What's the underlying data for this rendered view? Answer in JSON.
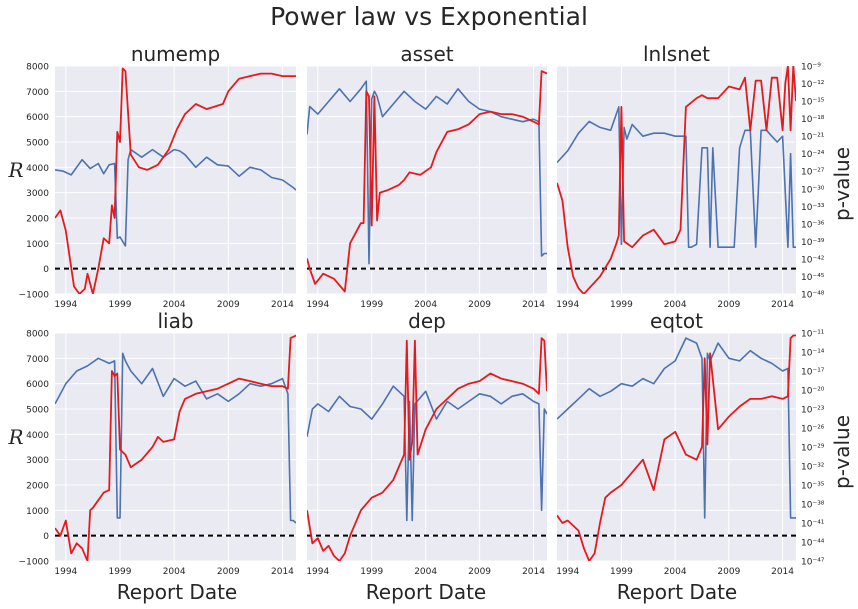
{
  "figure": {
    "title": "Power law vs Exponential",
    "xlabel": "Report Date",
    "ylabel_left": "R",
    "ylabel_right": "p-value"
  },
  "chart_data": [
    {
      "type": "line",
      "title": "numemp",
      "xticks": [
        "1994",
        "1999",
        "2004",
        "2009",
        "2014"
      ],
      "yticks_left": [
        "8000",
        "7000",
        "6000",
        "5000",
        "4000",
        "3000",
        "2000",
        "1000",
        "0",
        "−1000"
      ],
      "ylim_left": [
        -1000,
        8000
      ],
      "yticks_right": [],
      "ylim_right_log10": [
        -48,
        -9
      ],
      "xlim": [
        1993,
        2015.25
      ],
      "series": [
        {
          "axis": "left",
          "color": "#4c72b0",
          "x": [
            1993,
            1993.75,
            1994.5,
            1995.5,
            1996.25,
            1997,
            1997.5,
            1998,
            1998.5,
            1998.75,
            1999,
            1999.5,
            1999.75,
            2000,
            2001,
            2002,
            2003,
            2004,
            2004.5,
            2005,
            2006,
            2007,
            2008,
            2009,
            2010,
            2011,
            2012,
            2013,
            2014,
            2015,
            2015.25
          ],
          "y": [
            3900,
            3850,
            3700,
            4300,
            3950,
            4150,
            3750,
            4100,
            4150,
            1200,
            1250,
            900,
            4300,
            4700,
            4400,
            4700,
            4400,
            4700,
            4650,
            4500,
            4000,
            4400,
            4100,
            4050,
            3650,
            4000,
            3900,
            3600,
            3500,
            3200,
            3100
          ]
        },
        {
          "axis": "left",
          "color": "#e41a1c",
          "x": [
            1993,
            1993.5,
            1994,
            1994.75,
            1995.25,
            1995.75,
            1996,
            1996.5,
            1997,
            1997.5,
            1998,
            1998.25,
            1998.5,
            1998.75,
            1999,
            1999.25,
            1999.5,
            2000,
            2000.75,
            2001.5,
            2002.5,
            2003.5,
            2004.25,
            2005,
            2006,
            2007,
            2008.5,
            2009,
            2010,
            2011,
            2012,
            2013,
            2014,
            2015.25
          ],
          "y": [
            2000,
            2300,
            1500,
            -700,
            -1000,
            -800,
            -200,
            -1000,
            0,
            1200,
            1000,
            2500,
            2000,
            5400,
            5000,
            7900,
            7800,
            4500,
            4000,
            3900,
            4100,
            4700,
            5500,
            6100,
            6500,
            6300,
            6500,
            7000,
            7500,
            7600,
            7700,
            7700,
            7600,
            7600
          ]
        }
      ],
      "zero_line": 0
    },
    {
      "type": "line",
      "title": "asset",
      "xticks": [
        "1994",
        "1999",
        "2004",
        "2009",
        "2014"
      ],
      "yticks_left": [],
      "ylim_left": [
        -1000,
        8000
      ],
      "yticks_right": [],
      "ylim_right_log10": [
        -48,
        -9
      ],
      "xlim": [
        1993,
        2015.25
      ],
      "series": [
        {
          "axis": "left",
          "color": "#4c72b0",
          "x": [
            1993,
            1993.25,
            1994,
            1995,
            1996,
            1997,
            1998,
            1998.5,
            1998.75,
            1999,
            1999.25,
            1999.5,
            2000,
            2001,
            2002,
            2003,
            2004,
            2005,
            2006,
            2007,
            2008,
            2009,
            2010,
            2011,
            2012,
            2013,
            2014,
            2014.5,
            2014.75,
            2015,
            2015.25
          ],
          "y": [
            5300,
            6400,
            6100,
            6600,
            7100,
            6600,
            7100,
            7400,
            200,
            6700,
            7000,
            6800,
            6000,
            6500,
            7000,
            6600,
            6300,
            6800,
            6500,
            7100,
            6600,
            6300,
            6200,
            6000,
            5900,
            5800,
            5900,
            5800,
            500,
            600,
            600
          ]
        },
        {
          "axis": "left",
          "color": "#e41a1c",
          "x": [
            1993,
            1993.25,
            1993.75,
            1994.5,
            1995.5,
            1996.5,
            1997,
            1998,
            1998.25,
            1998.5,
            1998.75,
            1999,
            1999.25,
            1999.5,
            1999.75,
            2000.5,
            2001.5,
            2002,
            2002.5,
            2003.5,
            2004.5,
            2005,
            2006,
            2007,
            2008,
            2009,
            2010,
            2011,
            2012,
            2013,
            2014,
            2014.5,
            2014.75,
            2015.25
          ],
          "y": [
            400,
            0,
            -600,
            -200,
            -400,
            -900,
            1000,
            1800,
            1800,
            7000,
            6800,
            1700,
            6800,
            1900,
            3000,
            3100,
            3300,
            3500,
            3800,
            3700,
            4000,
            4600,
            5400,
            5500,
            5700,
            6100,
            6200,
            6100,
            6100,
            6000,
            5800,
            5700,
            7800,
            7700
          ]
        }
      ],
      "zero_line": 0
    },
    {
      "type": "line",
      "title": "lnlsnet",
      "xticks": [
        "1994",
        "1999",
        "2004",
        "2009",
        "2014"
      ],
      "yticks_left": [],
      "ylim_left": [
        -1000,
        8000
      ],
      "yticks_right": [
        "10⁻⁹",
        "10⁻¹²",
        "10⁻¹⁵",
        "10⁻¹⁸",
        "10⁻²¹",
        "10⁻²⁴",
        "10⁻²⁷",
        "10⁻³⁰",
        "10⁻³³",
        "10⁻³⁶",
        "10⁻³⁹",
        "10⁻⁴²",
        "10⁻⁴⁵",
        "10⁻⁴⁸"
      ],
      "ylim_right_log10": [
        -48,
        -9
      ],
      "xlim": [
        1993,
        2015.25
      ],
      "series": [
        {
          "axis": "right",
          "color": "#4c72b0",
          "x": [
            1993,
            1994,
            1995,
            1996,
            1997,
            1998,
            1998.75,
            1999,
            1999.25,
            1999.5,
            2000,
            2001,
            2002,
            2003,
            2004,
            2005,
            2005.25,
            2005.5,
            2006,
            2006.5,
            2007,
            2007.25,
            2007.5,
            2008,
            2009,
            2009.5,
            2010,
            2010.5,
            2011,
            2011.5,
            2012,
            2012.5,
            2013,
            2013.5,
            2014,
            2014.5,
            2014.75,
            2015,
            2015.25
          ],
          "y": [
            -25.5,
            -23.5,
            -20.5,
            -18.5,
            -19.5,
            -20,
            -16,
            -39.5,
            -19.5,
            -21.5,
            -19,
            -21,
            -20.5,
            -20.5,
            -21,
            -21,
            -40,
            -40,
            -39.5,
            -23,
            -23,
            -40,
            -23,
            -40,
            -40,
            -40,
            -23,
            -20,
            -20,
            -40,
            -20,
            -20,
            -21,
            -22,
            -21,
            -40,
            -24,
            -40,
            -40
          ]
        },
        {
          "axis": "right",
          "color": "#e41a1c",
          "x": [
            1993,
            1993.5,
            1994,
            1994.5,
            1995,
            1995.5,
            1996,
            1997,
            1998,
            1998.5,
            1998.75,
            1999,
            1999.25,
            2000,
            2001,
            2002,
            2003,
            2004,
            2004.5,
            2005,
            2006,
            2006.5,
            2007,
            2008,
            2009,
            2010,
            2010.5,
            2011,
            2011.5,
            2012,
            2012.5,
            2013,
            2013.5,
            2014,
            2014.25,
            2014.5,
            2014.75,
            2015,
            2015.25
          ],
          "y": [
            -29,
            -32,
            -40,
            -45,
            -47,
            -48,
            -47,
            -45,
            -42,
            -39.5,
            -38,
            -16,
            -39,
            -40,
            -38,
            -37,
            -39.5,
            -39,
            -37,
            -16,
            -14.5,
            -14,
            -14.5,
            -14.5,
            -12.5,
            -13,
            -11,
            -20,
            -11.5,
            -11.5,
            -20,
            -11,
            -11,
            -20,
            -12,
            -9,
            -20,
            -9,
            -15
          ]
        }
      ],
      "zero_line": 0
    },
    {
      "type": "line",
      "title": "liab",
      "xticks": [
        "1994",
        "1999",
        "2004",
        "2009",
        "2014"
      ],
      "yticks_left": [
        "8000",
        "7000",
        "6000",
        "5000",
        "4000",
        "3000",
        "2000",
        "1000",
        "0",
        "−1000"
      ],
      "ylim_left": [
        -1000,
        8000
      ],
      "yticks_right": [],
      "ylim_right_log10": [
        -48,
        -9
      ],
      "xlim": [
        1993,
        2015.25
      ],
      "series": [
        {
          "axis": "left",
          "color": "#4c72b0",
          "x": [
            1993,
            1994,
            1995,
            1996,
            1997,
            1998,
            1998.5,
            1998.75,
            1999,
            1999.25,
            1999.5,
            2000,
            2001,
            2002,
            2003,
            2004,
            2005,
            2006,
            2007,
            2008,
            2009,
            2010,
            2011,
            2012,
            2013,
            2014,
            2014.5,
            2014.75,
            2015,
            2015.25
          ],
          "y": [
            5200,
            6000,
            6500,
            6700,
            7000,
            6800,
            6900,
            700,
            700,
            7200,
            6900,
            6500,
            6000,
            6600,
            5500,
            6200,
            5900,
            6100,
            5400,
            5600,
            5300,
            5600,
            6000,
            5900,
            6000,
            6200,
            5600,
            600,
            600,
            500
          ]
        },
        {
          "axis": "left",
          "color": "#e41a1c",
          "x": [
            1993,
            1993.5,
            1994,
            1994.5,
            1995,
            1995.5,
            1996,
            1996.25,
            1996.5,
            1997,
            1997.5,
            1998,
            1998.25,
            1998.5,
            1998.75,
            1999,
            1999.25,
            1999.5,
            2000,
            2001,
            2002,
            2002.5,
            2003,
            2004,
            2004.5,
            2005,
            2006,
            2007,
            2008,
            2009,
            2010,
            2011,
            2012,
            2013,
            2014,
            2014.5,
            2014.75,
            2015.25
          ],
          "y": [
            300,
            0,
            600,
            -700,
            -300,
            -500,
            -1000,
            1000,
            1100,
            1400,
            1700,
            1800,
            6500,
            6300,
            6400,
            3400,
            3300,
            3200,
            2700,
            3000,
            3500,
            3900,
            3700,
            3800,
            4900,
            5400,
            5600,
            5700,
            5800,
            6000,
            6200,
            6100,
            6000,
            5900,
            5900,
            5800,
            7800,
            7900
          ]
        }
      ],
      "zero_line": 0
    },
    {
      "type": "line",
      "title": "dep",
      "xticks": [
        "1994",
        "1999",
        "2004",
        "2009",
        "2014"
      ],
      "yticks_left": [],
      "ylim_left": [
        -1000,
        8000
      ],
      "yticks_right": [],
      "ylim_right_log10": [
        -48,
        -9
      ],
      "xlim": [
        1993,
        2015.25
      ],
      "series": [
        {
          "axis": "left",
          "color": "#4c72b0",
          "x": [
            1993,
            1993.5,
            1994,
            1995,
            1996,
            1997,
            1998,
            1999,
            2000,
            2001,
            2002,
            2002.25,
            2002.5,
            2002.75,
            2003,
            2004,
            2005,
            2006,
            2007,
            2008,
            2009,
            2010,
            2011,
            2012,
            2013,
            2014,
            2014.5,
            2014.75,
            2015,
            2015.25
          ],
          "y": [
            3900,
            5000,
            5200,
            4900,
            5500,
            5100,
            5000,
            4600,
            5200,
            5900,
            5500,
            600,
            5300,
            600,
            5200,
            5700,
            4600,
            5300,
            5000,
            5300,
            5600,
            5500,
            5200,
            5500,
            5600,
            5300,
            5200,
            1000,
            5000,
            4800
          ]
        },
        {
          "axis": "left",
          "color": "#e41a1c",
          "x": [
            1993,
            1993.5,
            1994,
            1994.5,
            1995,
            1995.5,
            1996,
            1996.5,
            1997,
            1998,
            1999,
            2000,
            2001,
            2002,
            2002.25,
            2002.5,
            2002.75,
            2003,
            2003.25,
            2004,
            2005,
            2006,
            2007,
            2008,
            2009,
            2010,
            2011,
            2012,
            2013,
            2014,
            2014.5,
            2014.75,
            2015,
            2015.25
          ],
          "y": [
            1000,
            -300,
            -100,
            -600,
            -400,
            -800,
            -1000,
            -700,
            0,
            1000,
            1500,
            1700,
            2200,
            3200,
            7700,
            3000,
            3700,
            7700,
            3200,
            4200,
            5000,
            5400,
            5800,
            6000,
            6100,
            6400,
            6200,
            6100,
            6000,
            5800,
            5600,
            7800,
            7700,
            5700
          ]
        }
      ],
      "zero_line": 0
    },
    {
      "type": "line",
      "title": "eqtot",
      "xticks": [
        "1994",
        "1999",
        "2004",
        "2009",
        "2014"
      ],
      "yticks_left": [],
      "ylim_left": [
        -1000,
        8000
      ],
      "yticks_right": [
        "10⁻¹¹",
        "10⁻¹⁴",
        "10⁻¹⁷",
        "10⁻²⁰",
        "10⁻²³",
        "10⁻²⁶",
        "10⁻²⁹",
        "10⁻³²",
        "10⁻³⁵",
        "10⁻³⁸",
        "10⁻⁴¹",
        "10⁻⁴⁴",
        "10⁻⁴⁷"
      ],
      "ylim_right_log10": [
        -47,
        -11
      ],
      "xlim": [
        1993,
        2015.25
      ],
      "series": [
        {
          "axis": "left",
          "color": "#4c72b0",
          "x": [
            1993,
            1994,
            1995,
            1996,
            1997,
            1998,
            1999,
            2000,
            2001,
            2002,
            2003,
            2004,
            2005,
            2006,
            2006.5,
            2006.75,
            2007,
            2007.25,
            2008,
            2009,
            2010,
            2011,
            2012,
            2013,
            2014,
            2014.5,
            2014.75,
            2015,
            2015.25
          ],
          "y": [
            4600,
            5000,
            5400,
            5800,
            5500,
            5700,
            6000,
            5900,
            6200,
            6000,
            6600,
            6900,
            7800,
            7600,
            7000,
            700,
            7200,
            6900,
            7600,
            7000,
            6900,
            7300,
            7000,
            6800,
            6500,
            6600,
            700,
            700,
            700
          ]
        },
        {
          "axis": "left",
          "color": "#e41a1c",
          "x": [
            1993,
            1993.5,
            1994,
            1995,
            1995.5,
            1996,
            1996.5,
            1997,
            1997.5,
            1998,
            1999,
            2000,
            2001,
            2002,
            2003,
            2004,
            2005,
            2006,
            2006.5,
            2006.75,
            2007,
            2007.25,
            2008,
            2009,
            2010,
            2011,
            2012,
            2013,
            2014,
            2014.5,
            2014.75,
            2015,
            2015.25
          ],
          "y": [
            800,
            500,
            600,
            200,
            -500,
            -1000,
            -700,
            500,
            1500,
            1700,
            2000,
            2500,
            3000,
            1800,
            3800,
            4100,
            3200,
            3000,
            3500,
            7000,
            3600,
            7200,
            4200,
            4700,
            5100,
            5400,
            5400,
            5500,
            5400,
            5500,
            7800,
            7900,
            7900
          ]
        }
      ],
      "zero_line": 0
    }
  ]
}
